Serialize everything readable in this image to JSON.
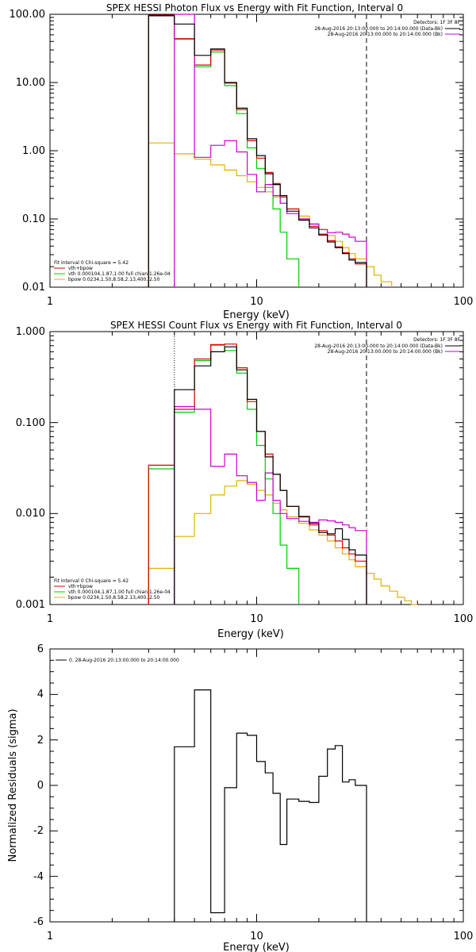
{
  "colors": {
    "data": "#000000",
    "total": "#e00000",
    "vth": "#00cc00",
    "bpow": "#e0b000",
    "background": "#cc00cc",
    "axes": "#000000"
  },
  "chart_data": [
    {
      "type": "line",
      "title": "SPEX HESSI Photon Flux vs Energy with Fit Function, Interval 0",
      "xlabel": "Energy (keV)",
      "ylabel": "",
      "xscale": "log",
      "yscale": "log",
      "xlim": [
        1,
        100
      ],
      "ylim": [
        0.01,
        100
      ],
      "x_ticks": [
        "1",
        "10",
        "100"
      ],
      "y_ticks": [
        "0.01",
        "0.10",
        "1.00",
        "10.00",
        "100.00"
      ],
      "vlines": [
        {
          "x": 4.0,
          "style": "dotted",
          "color": "black"
        },
        {
          "x": 34.0,
          "style": "dashed",
          "color": "black"
        }
      ],
      "info": {
        "detectors": "Detectors: 1F 3F 8F",
        "interval_1": "28-Aug-2016 20:13:00.000 to 20:14:00.000 (Data-Bk)",
        "interval_2": "28-Aug-2016 20:13:00.000 to 20:14:00.000 (Bk)"
      },
      "fit_legend": {
        "header": "Fit Interval 0   Chi-square = 5.42",
        "entries": [
          "vth+bpow",
          "vth 0.000104,1.87,1.00  full chian 1.26e-04",
          "bpow 0.0234,1.50,8.58,2.13,400.,2.50"
        ]
      },
      "series": [
        {
          "name": "",
          "color_key": "data",
          "step": true,
          "edges": [
            3,
            4,
            5,
            6,
            7,
            8,
            9,
            10,
            11,
            12,
            13,
            14,
            16,
            18,
            20,
            22,
            24,
            26,
            28,
            30,
            34
          ],
          "values": [
            95,
            72,
            25,
            31,
            10,
            4.2,
            1.5,
            0.85,
            0.46,
            0.32,
            0.22,
            0.13,
            0.096,
            0.074,
            0.058,
            0.046,
            0.038,
            0.031,
            0.025,
            0.023
          ]
        },
        {
          "name": "",
          "color_key": "total",
          "step": true,
          "edges": [
            3,
            4,
            5,
            6,
            7,
            8,
            9,
            10,
            11,
            12,
            13,
            14,
            16,
            18,
            20,
            22,
            24,
            26,
            28,
            30,
            34
          ],
          "values": [
            97,
            44,
            18,
            30,
            9.8,
            4.0,
            1.4,
            0.78,
            0.48,
            0.33,
            0.21,
            0.14,
            0.1,
            0.078,
            0.06,
            0.048,
            0.039,
            0.032,
            0.026,
            0.022
          ]
        },
        {
          "name": "",
          "color_key": "vth",
          "step": true,
          "edges": [
            3,
            4,
            5,
            6,
            7,
            8,
            9,
            10,
            11,
            12,
            13,
            14,
            16
          ],
          "values": [
            97,
            43,
            17,
            28,
            9.0,
            3.5,
            1.1,
            0.55,
            0.29,
            0.14,
            0.064,
            0.026
          ]
        },
        {
          "name": "",
          "color_key": "bpow",
          "step": true,
          "edges": [
            3,
            4,
            5,
            6,
            7,
            8,
            9,
            10,
            11,
            12,
            13,
            14,
            16,
            18,
            20,
            22,
            24,
            26,
            28,
            30,
            34,
            37,
            40,
            45
          ],
          "values": [
            1.3,
            0.9,
            0.75,
            0.62,
            0.52,
            0.43,
            0.35,
            0.29,
            0.25,
            0.21,
            0.17,
            0.14,
            0.11,
            0.085,
            0.07,
            0.057,
            0.047,
            0.038,
            0.031,
            0.026,
            0.02,
            0.015,
            0.012
          ]
        },
        {
          "name": "",
          "color_key": "background",
          "step": true,
          "edges": [
            4,
            5,
            6,
            7,
            8,
            9,
            10,
            11,
            12,
            13,
            14,
            16,
            18,
            20,
            22,
            24,
            26,
            28,
            30,
            34
          ],
          "values": [
            100,
            0.8,
            1.2,
            1.4,
            0.96,
            0.45,
            0.25,
            0.32,
            0.22,
            0.17,
            0.12,
            0.1,
            0.084,
            0.07,
            0.063,
            0.064,
            0.06,
            0.054,
            0.047
          ]
        }
      ]
    },
    {
      "type": "line",
      "title": "SPEX HESSI Count Flux vs Energy with Fit Function, Interval 0",
      "xlabel": "Energy (keV)",
      "ylabel": "",
      "xscale": "log",
      "yscale": "log",
      "xlim": [
        1,
        100
      ],
      "ylim": [
        0.001,
        1
      ],
      "x_ticks": [
        "1",
        "10",
        "100"
      ],
      "y_ticks": [
        "0.001",
        "0.010",
        "0.100",
        "1.000"
      ],
      "vlines": [
        {
          "x": 4.0,
          "style": "dotted",
          "color": "black"
        },
        {
          "x": 34.0,
          "style": "dashed",
          "color": "black"
        }
      ],
      "info": {
        "detectors": "Detectors: 1F 3F 8F",
        "interval_1": "28-Aug-2016 20:13:00.000 to 20:14:00.000 (Data-Bk)",
        "interval_2": "28-Aug-2016 20:13:00.000 to 20:14:00.000 (Bk)"
      },
      "fit_legend": {
        "header": "Fit Interval 0   Chi-square = 5.42",
        "entries": [
          "vth+bpow",
          "vth 0.000104,1.87,1.00  full chian 1.26e-04",
          "bpow 0.0234,1.50,8.58,2.13,400.,2.50"
        ]
      },
      "series": [
        {
          "name": "",
          "color_key": "data",
          "step": true,
          "edges": [
            4,
            5,
            6,
            7,
            8,
            9,
            10,
            11,
            12,
            13,
            14,
            16,
            18,
            20,
            22,
            24,
            26,
            28,
            30,
            34
          ],
          "values": [
            0.23,
            0.42,
            0.6,
            0.68,
            0.38,
            0.18,
            0.08,
            0.042,
            0.027,
            0.018,
            0.012,
            0.0092,
            0.0078,
            0.0062,
            0.006,
            0.0068,
            0.0052,
            0.004,
            0.0035
          ]
        },
        {
          "name": "",
          "color_key": "total",
          "step": true,
          "edges": [
            3,
            4,
            5,
            6,
            7,
            8,
            9,
            10,
            11,
            12,
            13,
            14,
            16,
            18,
            20,
            22,
            24,
            26,
            28,
            30,
            34
          ],
          "values": [
            0.034,
            0.14,
            0.5,
            0.72,
            0.73,
            0.4,
            0.17,
            0.08,
            0.045,
            0.027,
            0.018,
            0.012,
            0.0093,
            0.0075,
            0.0065,
            0.0058,
            0.005,
            0.0042,
            0.0036,
            0.003
          ]
        },
        {
          "name": "",
          "color_key": "vth",
          "step": true,
          "edges": [
            3,
            4,
            5,
            6,
            7,
            8,
            9,
            10,
            11,
            12,
            13,
            14,
            16
          ],
          "values": [
            0.031,
            0.13,
            0.48,
            0.71,
            0.62,
            0.35,
            0.14,
            0.056,
            0.024,
            0.01,
            0.0045,
            0.0025
          ]
        },
        {
          "name": "",
          "color_key": "bpow",
          "step": true,
          "edges": [
            3,
            4,
            5,
            6,
            7,
            8,
            9,
            10,
            11,
            12,
            13,
            14,
            16,
            18,
            20,
            22,
            24,
            26,
            28,
            30,
            34,
            37,
            40,
            44,
            48,
            52,
            56,
            60
          ],
          "values": [
            0.0025,
            0.0056,
            0.01,
            0.016,
            0.02,
            0.023,
            0.021,
            0.018,
            0.016,
            0.013,
            0.011,
            0.0092,
            0.0078,
            0.0066,
            0.0058,
            0.005,
            0.0042,
            0.0036,
            0.0031,
            0.0026,
            0.0022,
            0.0019,
            0.0016,
            0.0014,
            0.0012,
            0.0011,
            0.001
          ]
        },
        {
          "name": "",
          "color_key": "background",
          "step": true,
          "edges": [
            4,
            5,
            6,
            7,
            8,
            9,
            10,
            11,
            12,
            13,
            14,
            16,
            18,
            20,
            22,
            24,
            26,
            28,
            30,
            34
          ],
          "values": [
            0.15,
            0.14,
            0.033,
            0.045,
            0.026,
            0.022,
            0.014,
            0.028,
            0.014,
            0.01,
            0.0088,
            0.0082,
            0.008,
            0.0085,
            0.0083,
            0.008,
            0.0075,
            0.007,
            0.0065
          ]
        }
      ]
    },
    {
      "type": "line",
      "title": "",
      "xlabel": "Energy (keV)",
      "ylabel": "Normalized Residuals (sigma)",
      "xscale": "log",
      "yscale": "linear",
      "xlim": [
        1,
        100
      ],
      "ylim": [
        -6,
        6
      ],
      "x_ticks": [
        "1",
        "10",
        "100"
      ],
      "y_ticks": [
        "-6",
        "-4",
        "-2",
        "0",
        "2",
        "4",
        "6"
      ],
      "legend": "0. 28-Aug-2016 20:13:00.000 to 20:14:00.000",
      "series": [
        {
          "name": "",
          "color_key": "data",
          "step": true,
          "edges": [
            4,
            5,
            6,
            7,
            8,
            9,
            10,
            11,
            12,
            13,
            14,
            16,
            18,
            20,
            22,
            24,
            26,
            28,
            30,
            34
          ],
          "values": [
            1.7,
            4.2,
            -5.6,
            -0.1,
            2.3,
            2.2,
            1.05,
            0.55,
            -0.35,
            -2.6,
            -0.6,
            -0.7,
            -0.75,
            0.4,
            1.6,
            1.75,
            0.15,
            0.25,
            0.0
          ]
        }
      ]
    }
  ]
}
